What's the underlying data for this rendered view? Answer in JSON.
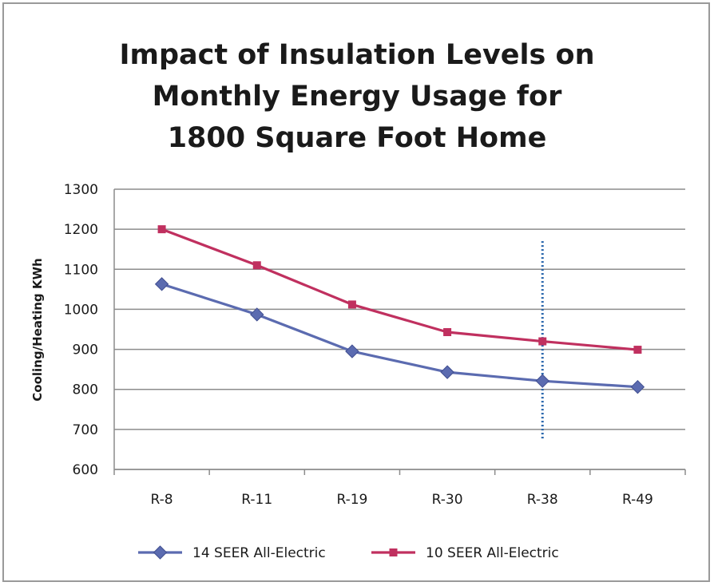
{
  "chart_data": {
    "type": "line",
    "title_lines": [
      "Impact of Insulation Levels on",
      "Monthly Energy Usage for",
      "1800 Square Foot Home"
    ],
    "xlabel": "",
    "ylabel": "Cooling/Heating KWh",
    "categories": [
      "R-8",
      "R-11",
      "R-19",
      "R-30",
      "R-38",
      "R-49"
    ],
    "ylim": [
      600,
      1300
    ],
    "yticks": [
      600,
      700,
      800,
      900,
      1000,
      1100,
      1200,
      1300
    ],
    "grid": true,
    "legend_position": "bottom",
    "series": [
      {
        "name": "14 SEER All-Electric",
        "color": "#5b6bb0",
        "marker": "diamond",
        "values": [
          1063,
          987,
          895,
          843,
          821,
          806
        ]
      },
      {
        "name": "10 SEER All-Electric",
        "color": "#c0305f",
        "marker": "square",
        "values": [
          1200,
          1110,
          1012,
          943,
          920,
          899
        ]
      }
    ],
    "reference_line": {
      "category": "R-38",
      "y_from": 675,
      "y_to": 1170,
      "color": "#1f5fa8",
      "style": "dotted"
    }
  }
}
